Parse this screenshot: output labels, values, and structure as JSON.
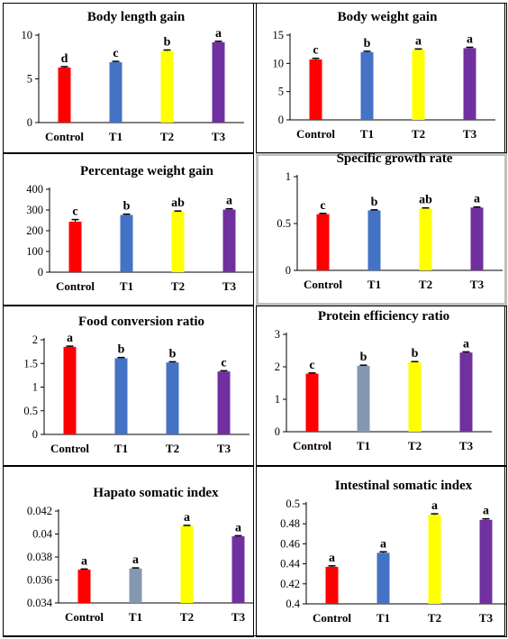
{
  "chart_data": [
    {
      "type": "bar",
      "title": "Body length gain",
      "categories": [
        "Control",
        "T1",
        "T2",
        "T3"
      ],
      "values": [
        6.3,
        6.9,
        8.2,
        9.2
      ],
      "errors": [
        0.1,
        0.1,
        0.1,
        0.1
      ],
      "letters": [
        "d",
        "c",
        "b",
        "a"
      ],
      "colors": [
        "#ff0000",
        "#4472c4",
        "#ffff00",
        "#7030a0"
      ],
      "ylim": [
        0,
        10
      ],
      "yticks": [
        0,
        5,
        10
      ],
      "ytick_labels": [
        "0",
        "5",
        "10"
      ]
    },
    {
      "type": "bar",
      "title": "Body weight gain",
      "categories": [
        "Control",
        "T1",
        "T2",
        "T3"
      ],
      "values": [
        10.7,
        12.0,
        12.4,
        12.7
      ],
      "errors": [
        0.2,
        0.15,
        0.15,
        0.15
      ],
      "letters": [
        "c",
        "b",
        "a",
        "a"
      ],
      "colors": [
        "#ff0000",
        "#4472c4",
        "#ffff00",
        "#7030a0"
      ],
      "ylim": [
        0,
        15
      ],
      "yticks": [
        0,
        5,
        10,
        15
      ],
      "ytick_labels": [
        "0",
        "5",
        "10",
        "15"
      ]
    },
    {
      "type": "bar",
      "title": "Percentage weight gain",
      "categories": [
        "Control",
        "T1",
        "T2",
        "T3"
      ],
      "values": [
        244,
        276,
        291,
        302
      ],
      "errors": [
        10,
        4,
        4,
        4
      ],
      "letters": [
        "c",
        "b",
        "ab",
        "a"
      ],
      "colors": [
        "#ff0000",
        "#4472c4",
        "#ffff00",
        "#7030a0"
      ],
      "ylim": [
        0,
        400
      ],
      "yticks": [
        0,
        100,
        200,
        300,
        400
      ],
      "ytick_labels": [
        "0",
        "100",
        "200",
        "300",
        "400"
      ]
    },
    {
      "type": "bar",
      "title": "Specific growth rate",
      "categories": [
        "Control",
        "T1",
        "T2",
        "T3"
      ],
      "values": [
        0.6,
        0.64,
        0.66,
        0.67
      ],
      "errors": [
        0.008,
        0.006,
        0.006,
        0.006
      ],
      "letters": [
        "c",
        "b",
        "ab",
        "a"
      ],
      "colors": [
        "#ff0000",
        "#4472c4",
        "#ffff00",
        "#7030a0"
      ],
      "ylim": [
        0,
        1
      ],
      "yticks": [
        0,
        0.5,
        1
      ],
      "ytick_labels": [
        "0",
        "0.5",
        "1"
      ]
    },
    {
      "type": "bar",
      "title": "Food conversion ratio",
      "categories": [
        "Control",
        "T1",
        "T2",
        "T3"
      ],
      "values": [
        1.85,
        1.61,
        1.52,
        1.33
      ],
      "errors": [
        0.015,
        0.015,
        0.015,
        0.015
      ],
      "letters": [
        "a",
        "b",
        "b",
        "c"
      ],
      "colors": [
        "#ff0000",
        "#4472c4",
        "#4472c4",
        "#7030a0"
      ],
      "ylim": [
        0,
        2
      ],
      "yticks": [
        0,
        0.5,
        1,
        1.5,
        2
      ],
      "ytick_labels": [
        "0",
        "0.5",
        "1",
        "1.5",
        "2"
      ]
    },
    {
      "type": "bar",
      "title": "Protein efficiency ratio",
      "categories": [
        "Control",
        "T1",
        "T2",
        "T3"
      ],
      "values": [
        1.79,
        2.03,
        2.14,
        2.44
      ],
      "errors": [
        0.02,
        0.02,
        0.02,
        0.02
      ],
      "letters": [
        "c",
        "b",
        "b",
        "a"
      ],
      "colors": [
        "#ff0000",
        "#8497b0",
        "#ffff00",
        "#7030a0"
      ],
      "ylim": [
        0,
        3
      ],
      "yticks": [
        0,
        1,
        2,
        3
      ],
      "ytick_labels": [
        "0",
        "1",
        "2",
        "3"
      ]
    },
    {
      "type": "bar",
      "title": "Hapato somatic index",
      "categories": [
        "Control",
        "T1",
        "T2",
        "T3"
      ],
      "values": [
        0.0369,
        0.037,
        0.0407,
        0.0398
      ],
      "errors": [
        5e-05,
        5e-05,
        5e-05,
        5e-05
      ],
      "letters": [
        "a",
        "a",
        "a",
        "a"
      ],
      "colors": [
        "#ff0000",
        "#8497b0",
        "#ffff00",
        "#7030a0"
      ],
      "ylim": [
        0.034,
        0.042
      ],
      "yticks": [
        0.034,
        0.036,
        0.038,
        0.04,
        0.042
      ],
      "ytick_labels": [
        "0.034",
        "0.036",
        "0.038",
        "0.04",
        "0.042"
      ]
    },
    {
      "type": "bar",
      "title": "Intestinal somatic index",
      "categories": [
        "Control",
        "T1",
        "T2",
        "T3"
      ],
      "values": [
        0.437,
        0.451,
        0.489,
        0.484
      ],
      "errors": [
        0.001,
        0.001,
        0.001,
        0.001
      ],
      "letters": [
        "a",
        "a",
        "a",
        "a"
      ],
      "colors": [
        "#ff0000",
        "#4472c4",
        "#ffff00",
        "#7030a0"
      ],
      "ylim": [
        0.4,
        0.5
      ],
      "yticks": [
        0.4,
        0.42,
        0.44,
        0.46,
        0.48,
        0.5
      ],
      "ytick_labels": [
        "0.4",
        "0.42",
        "0.44",
        "0.46",
        "0.48",
        "0.5"
      ]
    }
  ]
}
